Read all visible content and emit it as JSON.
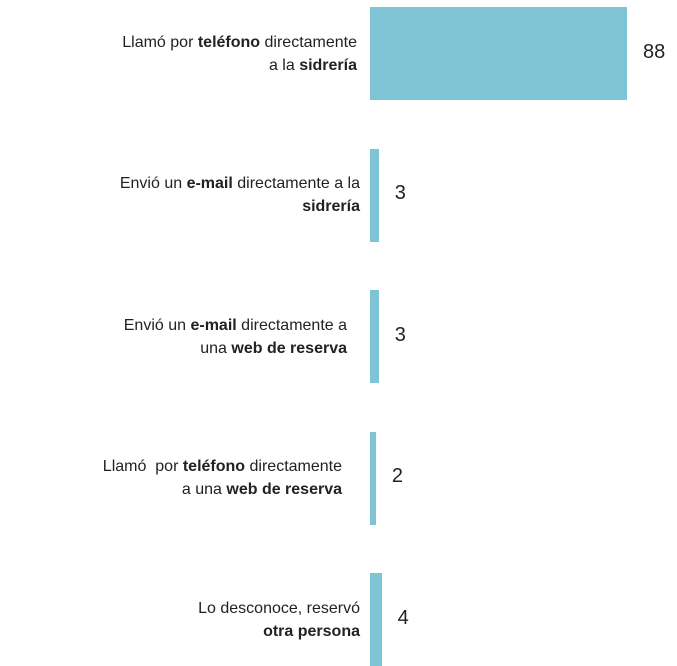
{
  "chart_data": {
    "type": "bar",
    "orientation": "horizontal",
    "color": "#7fc4d4",
    "categories": [
      [
        [
          {
            "text": "Llamó por "
          },
          {
            "text": "teléfono",
            "bold": true
          },
          {
            "text": " directamente"
          }
        ],
        [
          {
            "text": "a la "
          },
          {
            "text": "sidrería",
            "bold": true
          }
        ]
      ],
      [
        [
          {
            "text": "Envió un "
          },
          {
            "text": "e-mail",
            "bold": true
          },
          {
            "text": " directamente a la"
          }
        ],
        [
          {
            "text": "sidrería",
            "bold": true
          }
        ]
      ],
      [
        [
          {
            "text": "Envió un "
          },
          {
            "text": "e-mail",
            "bold": true
          },
          {
            "text": " directamente a"
          }
        ],
        [
          {
            "text": "una "
          },
          {
            "text": "web de reserva",
            "bold": true
          }
        ]
      ],
      [
        [
          {
            "text": "Llamó  por "
          },
          {
            "text": "teléfono",
            "bold": true
          },
          {
            "text": " directamente"
          }
        ],
        [
          {
            "text": "a una "
          },
          {
            "text": "web de reserva",
            "bold": true
          }
        ]
      ],
      [
        [
          {
            "text": "Lo desconoce, reservó"
          }
        ],
        [
          {
            "text": "otra persona",
            "bold": true
          }
        ]
      ]
    ],
    "values": [
      88,
      3,
      3,
      2,
      4
    ]
  }
}
